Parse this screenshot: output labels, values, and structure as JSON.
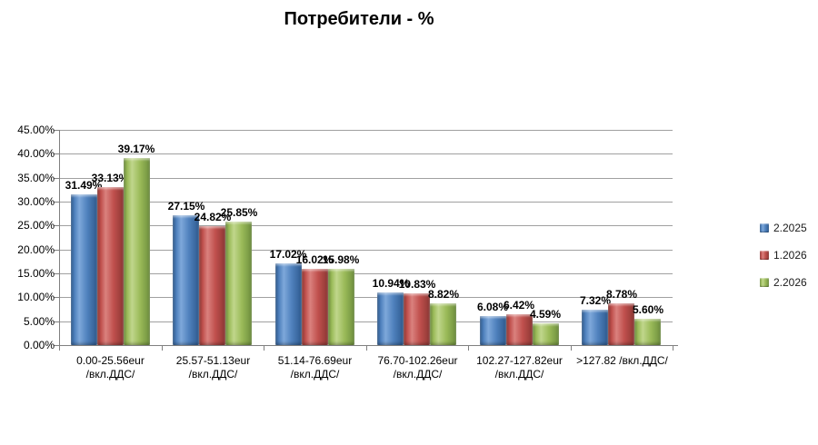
{
  "title": "Потребители - %",
  "chart_data": {
    "type": "bar",
    "title": "Потребители - %",
    "categories": [
      [
        "0.00-25.56eur",
        "/вкл.ДДС/"
      ],
      [
        "25.57-51.13eur",
        "/вкл.ДДС/"
      ],
      [
        "51.14-76.69eur",
        "/вкл.ДДС/"
      ],
      [
        "76.70-102.26eur",
        "/вкл.ДДС/"
      ],
      [
        "102.27-127.82eur",
        "/вкл.ДДС/"
      ],
      [
        ">127.82 /вкл.ДДС/"
      ]
    ],
    "series": [
      {
        "name": "2.2025",
        "color": "#4F81BD",
        "values": [
          31.49,
          27.15,
          17.02,
          10.94,
          6.08,
          7.32
        ]
      },
      {
        "name": "1.2026",
        "color": "#C0504D",
        "values": [
          33.13,
          24.82,
          16.02,
          10.83,
          6.42,
          8.78
        ]
      },
      {
        "name": "2.2026",
        "color": "#9BBB59",
        "values": [
          39.17,
          25.85,
          15.98,
          8.82,
          4.59,
          5.6
        ]
      }
    ],
    "xlabel": "",
    "ylabel": "",
    "ylim": [
      0,
      45
    ],
    "ytick_step": 5,
    "ytick_labels": [
      "0.00%",
      "5.00%",
      "10.00%",
      "15.00%",
      "20.00%",
      "25.00%",
      "30.00%",
      "35.00%",
      "40.00%",
      "45.00%"
    ],
    "data_label_format": "percent_2dp",
    "grid": true,
    "legend_position": "right",
    "bar_style": "3d-bevel"
  }
}
